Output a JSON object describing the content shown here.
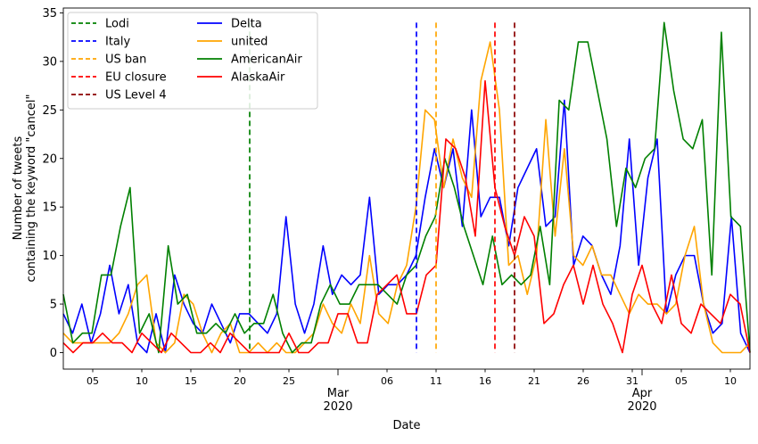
{
  "chart_data": {
    "type": "line",
    "xlabel": "Date",
    "ylabel_lines": [
      "Number of tweets",
      "containing the keyword \"cancel\""
    ],
    "x_start": "2020-02-02",
    "x_end": "2020-04-12",
    "ylim": [
      -1.7,
      35.5
    ],
    "y_ticks": [
      0,
      5,
      10,
      15,
      20,
      25,
      30,
      35
    ],
    "x_ticks": [
      {
        "date": "2020-02-05",
        "label": "05"
      },
      {
        "date": "2020-02-10",
        "label": "10"
      },
      {
        "date": "2020-02-15",
        "label": "15"
      },
      {
        "date": "2020-02-20",
        "label": "20"
      },
      {
        "date": "2020-02-25",
        "label": "25"
      },
      {
        "date": "2020-03-01",
        "label": "Mar",
        "year": "2020"
      },
      {
        "date": "2020-03-06",
        "label": "06"
      },
      {
        "date": "2020-03-11",
        "label": "11"
      },
      {
        "date": "2020-03-16",
        "label": "16"
      },
      {
        "date": "2020-03-21",
        "label": "21"
      },
      {
        "date": "2020-03-26",
        "label": "26"
      },
      {
        "date": "2020-03-31",
        "label": "31"
      },
      {
        "date": "2020-04-01",
        "label": "Apr",
        "year": "2020"
      },
      {
        "date": "2020-04-05",
        "label": "05"
      },
      {
        "date": "2020-04-10",
        "label": "10"
      }
    ],
    "grid": false,
    "legend_placement": "top-left",
    "events": [
      {
        "name": "Lodi",
        "date": "2020-02-21",
        "color": "#008000"
      },
      {
        "name": "Italy",
        "date": "2020-03-09",
        "color": "#0000ff"
      },
      {
        "name": "US ban",
        "date": "2020-03-11",
        "color": "#ffa500"
      },
      {
        "name": "EU closure",
        "date": "2020-03-17",
        "color": "#ff0000"
      },
      {
        "name": "US Level 4",
        "date": "2020-03-19",
        "color": "#8b0000"
      }
    ],
    "series": [
      {
        "name": "Delta",
        "color": "#0000ff",
        "values": [
          4,
          2,
          5,
          1,
          4,
          9,
          4,
          7,
          1,
          0,
          4,
          0,
          8,
          5,
          3,
          2,
          5,
          3,
          1,
          4,
          4,
          3,
          2,
          4,
          14,
          5,
          2,
          5,
          11,
          6,
          8,
          7,
          8,
          16,
          6,
          7,
          7,
          8,
          10,
          16,
          21,
          17,
          21,
          13,
          25,
          14,
          16,
          16,
          11,
          17,
          19,
          21,
          13,
          14,
          26,
          9,
          12,
          11,
          8,
          6,
          11,
          22,
          9,
          18,
          22,
          4,
          8,
          10,
          10,
          5,
          2,
          3,
          14,
          2,
          0
        ]
      },
      {
        "name": "united",
        "color": "#ffa500",
        "values": [
          2,
          1,
          1,
          1,
          1,
          1,
          2,
          4,
          7,
          8,
          1,
          0,
          1,
          6,
          5,
          2,
          0,
          2,
          3,
          0,
          0,
          1,
          0,
          1,
          0,
          0,
          1,
          2,
          5,
          3,
          2,
          5,
          3,
          10,
          4,
          3,
          7,
          9,
          15,
          25,
          24,
          17,
          22,
          18,
          16,
          28,
          32,
          25,
          9,
          10,
          6,
          10,
          24,
          12,
          21,
          10,
          9,
          11,
          8,
          8,
          6,
          4,
          6,
          5,
          5,
          4,
          5,
          10,
          13,
          5,
          1,
          0,
          0,
          0,
          1
        ]
      },
      {
        "name": "AmericanAir",
        "color": "#008000",
        "values": [
          6,
          1,
          2,
          2,
          8,
          8,
          13,
          17,
          2,
          4,
          0,
          11,
          5,
          6,
          2,
          2,
          3,
          2,
          4,
          2,
          3,
          3,
          6,
          2,
          0,
          1,
          1,
          5,
          7,
          5,
          5,
          7,
          7,
          7,
          6,
          5,
          8,
          9,
          12,
          14,
          20,
          17,
          13,
          10,
          7,
          12,
          7,
          8,
          7,
          8,
          13,
          7,
          26,
          25,
          32,
          32,
          27,
          22,
          13,
          19,
          17,
          20,
          21,
          34,
          27,
          22,
          21,
          24,
          8,
          33,
          14,
          13,
          0
        ]
      },
      {
        "name": "AlaskaAir",
        "color": "#ff0000",
        "values": [
          1,
          0,
          1,
          1,
          2,
          1,
          1,
          0,
          2,
          1,
          0,
          2,
          1,
          0,
          0,
          1,
          0,
          2,
          1,
          0,
          0,
          0,
          0,
          2,
          0,
          0,
          1,
          1,
          4,
          4,
          1,
          1,
          6,
          7,
          8,
          4,
          4,
          8,
          9,
          22,
          21,
          18,
          12,
          28,
          17,
          13,
          10,
          14,
          12,
          3,
          4,
          7,
          9,
          5,
          9,
          5,
          3,
          0,
          6,
          9,
          5,
          3,
          8,
          3,
          2,
          5,
          4,
          3,
          6,
          5,
          0
        ]
      }
    ]
  }
}
